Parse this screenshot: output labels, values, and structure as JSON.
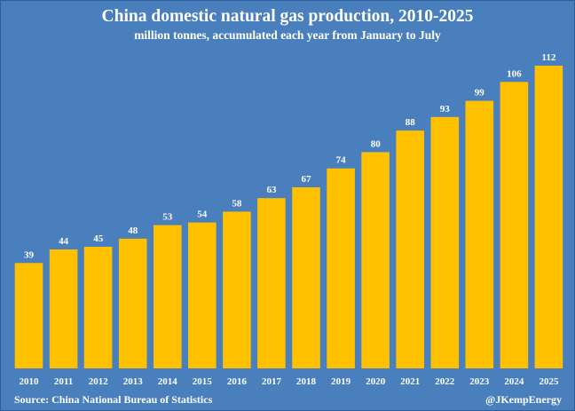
{
  "colors": {
    "background": "#4a7fbd",
    "bar": "#ffc000",
    "text": "#ffffff"
  },
  "footer": {
    "source": "Source: China National Bureau of Statistics",
    "handle": "@JKempEnergy"
  },
  "chart_data": {
    "type": "bar",
    "title": "China domestic natural gas production, 2010-2025",
    "subtitle": "million tonnes, accumulated each year from January to July",
    "categories": [
      "2010",
      "2011",
      "2012",
      "2013",
      "2014",
      "2015",
      "2016",
      "2017",
      "2018",
      "2019",
      "2020",
      "2021",
      "2022",
      "2023",
      "2024",
      "2025"
    ],
    "values": [
      39,
      44,
      45,
      48,
      53,
      54,
      58,
      63,
      67,
      74,
      80,
      88,
      93,
      99,
      106,
      112
    ],
    "data_labels": true,
    "xlabel": "",
    "ylabel": "",
    "ylim": [
      0,
      112
    ],
    "grid": false,
    "legend": "none"
  }
}
